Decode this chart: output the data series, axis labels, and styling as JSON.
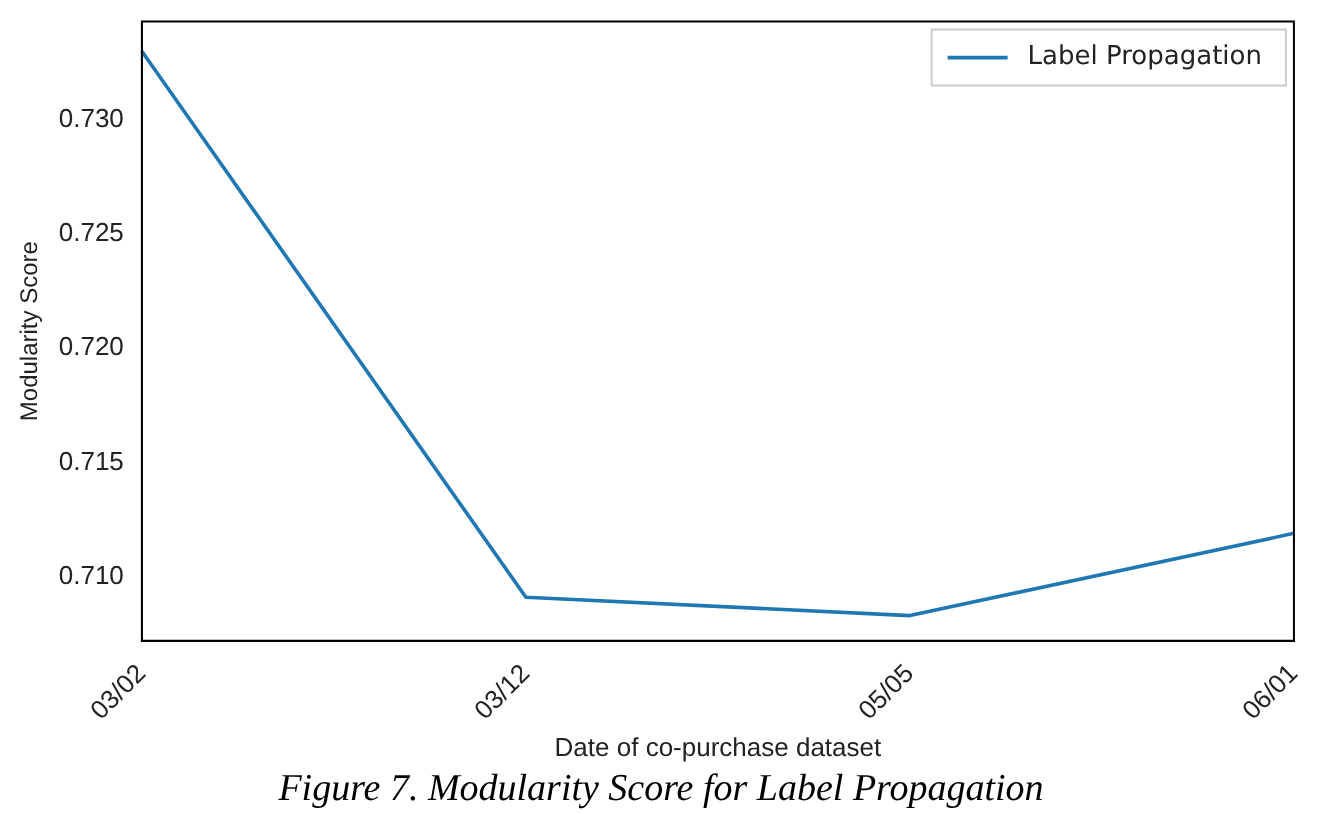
{
  "chart_data": {
    "type": "line",
    "categories": [
      "03/02",
      "03/12",
      "05/05",
      "06/01"
    ],
    "series": [
      {
        "name": "Label Propagation",
        "color": "#1f77b4",
        "values": [
          0.733,
          0.7091,
          0.7083,
          0.7119
        ]
      }
    ],
    "ylim": [
      0.7072,
      0.7343
    ],
    "yticks": [
      {
        "value": 0.71,
        "label": "0.710"
      },
      {
        "value": 0.715,
        "label": "0.715"
      },
      {
        "value": 0.72,
        "label": "0.720"
      },
      {
        "value": 0.725,
        "label": "0.725"
      },
      {
        "value": 0.73,
        "label": "0.730"
      }
    ],
    "xlabel": "Date of co-purchase dataset",
    "ylabel": "Modularity Score",
    "annotations": [
      "Figure 7. Modularity Score for Label Propagation"
    ],
    "legend": "top right",
    "grid": false,
    "marker": "none",
    "line_style": "solid"
  }
}
